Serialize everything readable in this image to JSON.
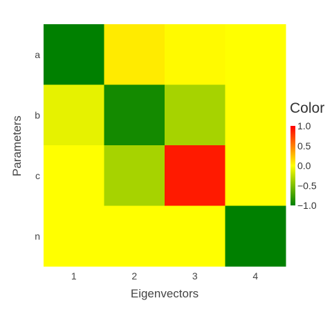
{
  "chart_data": {
    "type": "heatmap",
    "xlabel": "Eigenvectors",
    "ylabel": "Parameters",
    "x_categories": [
      "1",
      "2",
      "3",
      "4"
    ],
    "y_categories": [
      "a",
      "b",
      "c",
      "n"
    ],
    "z": [
      [
        -1.0,
        0.08,
        0.02,
        0.0
      ],
      [
        -0.1,
        -0.92,
        -0.35,
        0.0
      ],
      [
        0.0,
        -0.35,
        0.9,
        0.0
      ],
      [
        0.0,
        0.0,
        0.0,
        -1.0
      ]
    ],
    "zlim": [
      -1.0,
      1.0
    ],
    "colorscale": [
      {
        "value": -1.0,
        "color": "#008000"
      },
      {
        "value": 0.0,
        "color": "#ffff00"
      },
      {
        "value": 1.0,
        "color": "#ff0000"
      }
    ],
    "colorbar": {
      "title": "Color",
      "ticks": [
        1.0,
        0.5,
        0.0,
        -0.5,
        -1.0
      ],
      "tick_labels": [
        "1.0",
        "0.5",
        "0.0",
        "−0.5",
        "−1.0"
      ]
    },
    "grid": false,
    "legend_position": "right"
  }
}
